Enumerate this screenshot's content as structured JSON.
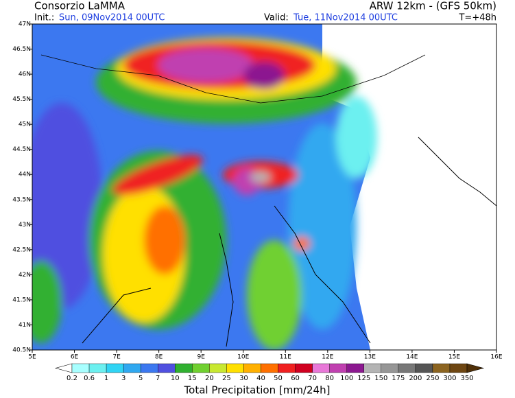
{
  "header": {
    "left_title": "Consorzio LaMMA",
    "right_title": "ARW 12km  -  (GFS 50km)",
    "init_label": "Init.:",
    "init_value": "Sun, 09Nov2014 00UTC",
    "valid_label": "Valid:",
    "valid_value": "Tue, 11Nov2014 00UTC",
    "lead_time": "T=+48h"
  },
  "map": {
    "lon_labels": [
      "5E",
      "6E",
      "7E",
      "8E",
      "9E",
      "10E",
      "11E",
      "12E",
      "13E",
      "14E",
      "15E",
      "16E"
    ],
    "lat_labels": [
      "47N",
      "46.5N",
      "46N",
      "45.5N",
      "45N",
      "44.5N",
      "44N",
      "43.5N",
      "43N",
      "42.5N",
      "42N",
      "41.5N",
      "41N",
      "40.5N"
    ]
  },
  "colorbar": {
    "title": "Total Precipitation [mm/24h]",
    "labels": [
      "0.2",
      "0.6",
      "1",
      "3",
      "5",
      "7",
      "10",
      "15",
      "20",
      "25",
      "30",
      "40",
      "50",
      "60",
      "70",
      "80",
      "100",
      "125",
      "150",
      "175",
      "200",
      "250",
      "300",
      "350"
    ],
    "colors": [
      "#ffffff",
      "#a8ffff",
      "#6cf0f0",
      "#30d4f4",
      "#30a8f0",
      "#3c78f0",
      "#5050e0",
      "#30b030",
      "#70d030",
      "#c8e830",
      "#ffe000",
      "#ffb000",
      "#ff7000",
      "#f02020",
      "#d00020",
      "#e878d8",
      "#c040b0",
      "#8c1890",
      "#b4b4b4",
      "#969696",
      "#787878",
      "#555555",
      "#8c6420",
      "#6e4612",
      "#503008"
    ]
  }
}
